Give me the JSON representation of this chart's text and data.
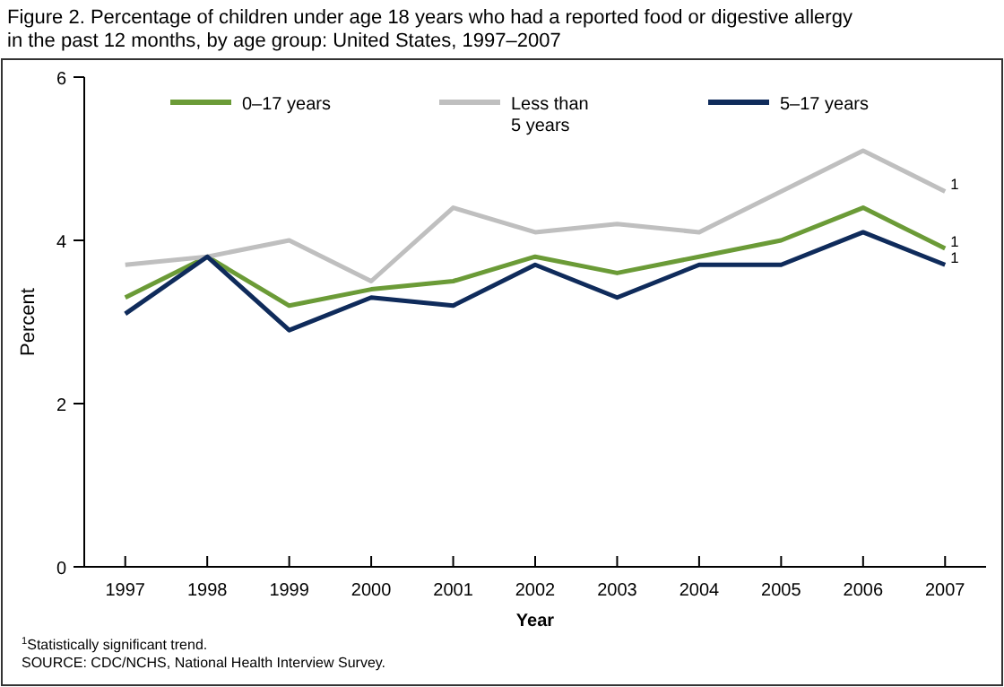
{
  "chart_data": {
    "type": "line",
    "title": "Figure 2. Percentage of children under age 18 years who had a reported food or digestive allergy in the past 12 months, by age group: United States, 1997–2007",
    "xlabel": "Year",
    "ylabel": "Percent",
    "x": [
      1997,
      1998,
      1999,
      2000,
      2001,
      2002,
      2003,
      2004,
      2005,
      2006,
      2007
    ],
    "xlim": [
      1996.5,
      2007.5
    ],
    "xticks": [
      1997,
      1998,
      1999,
      2000,
      2001,
      2002,
      2003,
      2004,
      2005,
      2006,
      2007
    ],
    "ylim": [
      0,
      6
    ],
    "yticks": [
      0,
      2,
      4,
      6
    ],
    "grid": false,
    "legend": "top",
    "marker": "none",
    "line_style": "solid",
    "series": [
      {
        "name": "0–17 years",
        "color": "#6b9b37",
        "values": [
          3.3,
          3.8,
          3.2,
          3.4,
          3.5,
          3.8,
          3.6,
          3.8,
          4.0,
          4.4,
          3.9
        ]
      },
      {
        "name": "Less than 5 years",
        "color": "#bfbfbf",
        "values": [
          3.7,
          3.8,
          4.0,
          3.5,
          4.4,
          4.1,
          4.2,
          4.1,
          4.6,
          5.1,
          4.6
        ]
      },
      {
        "name": "5–17 years",
        "color": "#0f2b5b",
        "values": [
          3.1,
          3.8,
          2.9,
          3.3,
          3.2,
          3.7,
          3.3,
          3.7,
          3.7,
          4.1,
          3.7
        ]
      }
    ],
    "annotations": [
      "$^{1}$",
      "$^{1}$",
      "$^{1}$",
      "$^{1}$Statistically significant trend.",
      "SOURCE: CDC/NCHS, National Health Interview Survey."
    ]
  }
}
